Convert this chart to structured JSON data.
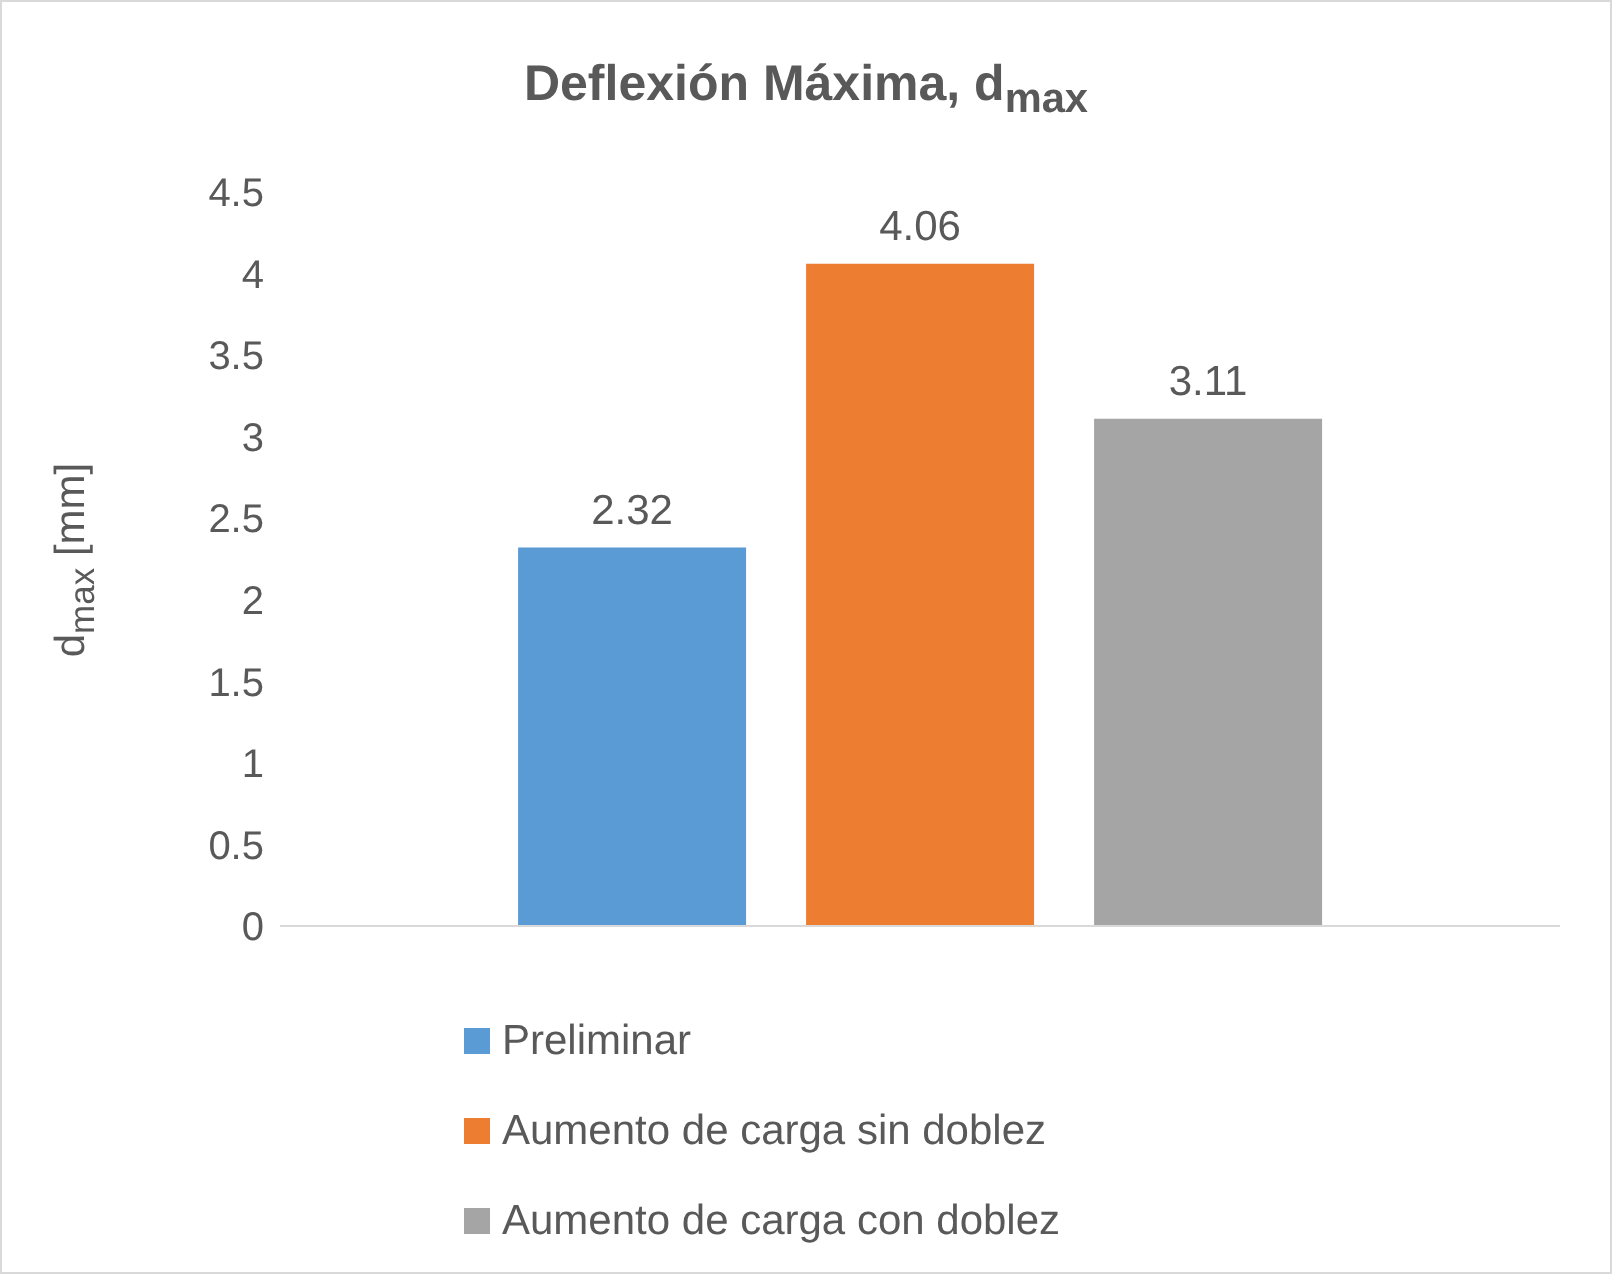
{
  "chart_data": {
    "type": "bar",
    "title": "Deflexión Máxima, d$_{max}$",
    "ylabel": "d$_{max}$ [mm]",
    "categories": [
      null
    ],
    "series": [
      {
        "name": "Preliminar",
        "color": "#5b9bd5",
        "values": [
          2.32
        ]
      },
      {
        "name": "Aumento de carga sin doblez",
        "color": "#ed7d31",
        "values": [
          4.06
        ]
      },
      {
        "name": "Aumento de carga con doblez",
        "color": "#a5a5a5",
        "values": [
          3.11
        ]
      }
    ],
    "ylim": [
      0,
      4.5
    ],
    "yticks": [
      0,
      0.5,
      1,
      1.5,
      2,
      2.5,
      3,
      3.5,
      4,
      4.5
    ],
    "data_labels": true,
    "legend": "bottom",
    "grid": false
  }
}
